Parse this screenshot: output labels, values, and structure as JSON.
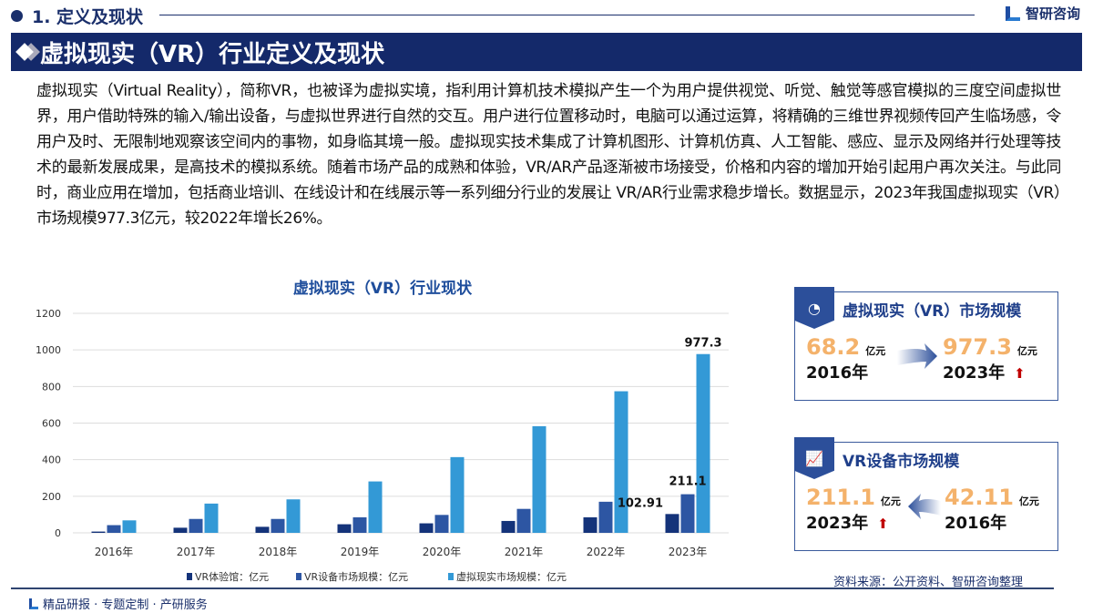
{
  "section": {
    "title": "1. 定义及现状"
  },
  "brand": {
    "name": "智研咨询"
  },
  "banner": {
    "title": "虚拟现实（VR）行业定义及现状"
  },
  "paragraph": "虚拟现实（Virtual Reality），简称VR，也被译为虚拟实境，指利用计算机技术模拟产生一个为用户提供视觉、听觉、触觉等感官模拟的三度空间虚拟世界，用户借助特殊的输入/输出设备，与虚拟世界进行自然的交互。用户进行位置移动时，电脑可以通过运算，将精确的三维世界视频传回产生临场感，令用户及时、无限制地观察该空间内的事物，如身临其境一般。虚拟现实技术集成了计算机图形、计算机仿真、人工智能、感应、显示及网络并行处理等技术的最新发展成果，是高技术的模拟系统。随着市场产品的成熟和体验，VR/AR产品逐渐被市场接受，价格和内容的增加开始引起用户再次关注。与此同时，商业应用在增加，包括商业培训、在线设计和在线展示等一系列细分行业的发展让 VR/AR行业需求稳步增长。数据显示，2023年我国虚拟现实（VR）市场规模977.3亿元，较2022年增长26%。",
  "chart_data": {
    "type": "bar",
    "title": "虚拟现实（VR）行业现状",
    "categories": [
      "2016年",
      "2017年",
      "2018年",
      "2019年",
      "2020年",
      "2021年",
      "2022年",
      "2023年"
    ],
    "series": [
      {
        "name": "VR体验馆：亿元",
        "color": "#14337a",
        "values": [
          7,
          28,
          33,
          47,
          52,
          65,
          85,
          102.91
        ]
      },
      {
        "name": "VR设备市场规模：亿元",
        "color": "#2d56a3",
        "values": [
          42.11,
          76,
          76,
          85,
          98,
          131,
          170,
          211.1
        ]
      },
      {
        "name": "虚拟现实市场规模：亿元",
        "color": "#3399d6",
        "values": [
          68.2,
          160,
          183,
          281,
          414,
          583,
          774,
          977.3
        ]
      }
    ],
    "data_labels": [
      {
        "series": 0,
        "index": 7,
        "text": "102.91"
      },
      {
        "series": 1,
        "index": 7,
        "text": "211.1"
      },
      {
        "series": 2,
        "index": 7,
        "text": "977.3"
      }
    ],
    "ylim": [
      0,
      1200
    ],
    "yticks": [
      "0",
      "200",
      "400",
      "600",
      "800",
      "1000",
      "1200"
    ],
    "grid": true,
    "legend": "bottom"
  },
  "card1": {
    "title": "虚拟现实（VR）市场规模",
    "from_value": "68.2",
    "from_unit": "亿元",
    "from_year": "2016年",
    "to_value": "977.3",
    "to_unit": "亿元",
    "to_year": "2023年"
  },
  "card2": {
    "title": "VR设备市场规模",
    "to_value": "211.1",
    "to_unit": "亿元",
    "to_year": "2023年",
    "from_value": "42.11",
    "from_unit": "亿元",
    "from_year": "2016年"
  },
  "source": "资料来源：公开资料、智研咨询整理",
  "footer": "精品研报 · 专题定制 · 产研服务"
}
